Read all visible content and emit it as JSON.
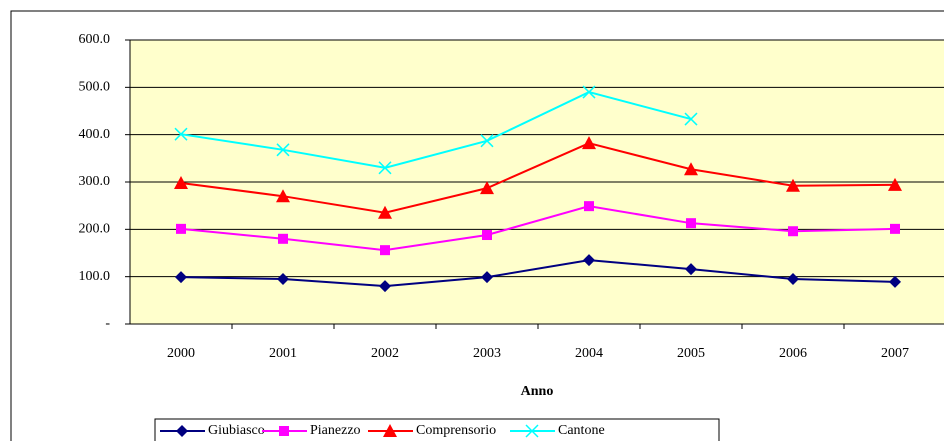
{
  "chart_data": {
    "type": "line",
    "x_label": "Anno",
    "categories": [
      "2000",
      "2001",
      "2002",
      "2003",
      "2004",
      "2005",
      "2006",
      "2007"
    ],
    "series": [
      {
        "name": "Giubiasco",
        "color": "#000080",
        "marker": "diamond",
        "values": [
          99,
          95,
          80,
          99,
          135,
          116,
          95,
          89
        ]
      },
      {
        "name": "Pianezzo",
        "color": "#ff00ff",
        "marker": "square",
        "values": [
          201,
          180,
          156,
          188,
          249,
          213,
          196,
          201
        ]
      },
      {
        "name": "Comprensorio",
        "color": "#ff0000",
        "marker": "triangle",
        "values": [
          298,
          270,
          235,
          287,
          382,
          327,
          292,
          294
        ]
      },
      {
        "name": "Cantone",
        "color": "#00ffff",
        "marker": "x",
        "values": [
          401,
          368,
          330,
          387,
          490,
          433,
          null,
          null
        ]
      }
    ],
    "ylim": [
      0,
      600
    ],
    "yticks": [
      {
        "value": 0,
        "label": "-"
      },
      {
        "value": 100,
        "label": "100.0"
      },
      {
        "value": 200,
        "label": "200.0"
      },
      {
        "value": 300,
        "label": "300.0"
      },
      {
        "value": 400,
        "label": "400.0"
      },
      {
        "value": 500,
        "label": "500.0"
      },
      {
        "value": 600,
        "label": "600.0"
      }
    ],
    "grid": true,
    "background": "#ffffcc",
    "legend": "bottom"
  }
}
